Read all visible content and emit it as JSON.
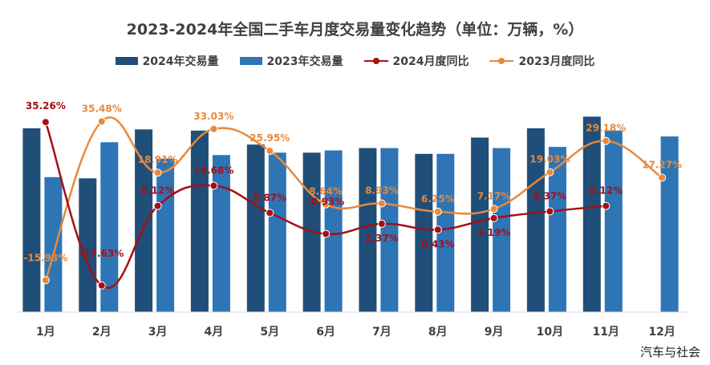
{
  "chart_data": {
    "type": "bar",
    "title": "2023-2024年全国二手车月度交易量变化趋势（单位：万辆，%）",
    "categories": [
      "1月",
      "2月",
      "3月",
      "4月",
      "5月",
      "6月",
      "7月",
      "8月",
      "9月",
      "10月",
      "11月",
      "12月"
    ],
    "series": [
      {
        "name": "2024年交易量",
        "kind": "bar",
        "color": "#1f4e79",
        "values": [
          158,
          115,
          157,
          156,
          144,
          137,
          141,
          136,
          150,
          158,
          168,
          null
        ]
      },
      {
        "name": "2023年交易量",
        "kind": "bar",
        "color": "#2e75b6",
        "values": [
          116,
          146,
          132,
          135,
          137,
          139,
          141,
          136,
          141,
          142,
          156,
          151
        ]
      },
      {
        "name": "2024月度同比",
        "kind": "line",
        "color": "#a50f15",
        "values": [
          35.26,
          -17.63,
          8.12,
          14.68,
          5.87,
          -0.93,
          2.37,
          0.43,
          4.19,
          6.37,
          8.12,
          null
        ],
        "labels": [
          "35.26%",
          "-17.63%",
          "8.12%",
          "14.68%",
          "5.87%",
          "-0.93%",
          "2.37%",
          "0.43%",
          "4.19%",
          "6.37%",
          "8.12%",
          ""
        ]
      },
      {
        "name": "2023月度同比",
        "kind": "line",
        "color": "#e8893c",
        "values": [
          -15.93,
          35.48,
          18.91,
          33.03,
          25.95,
          8.64,
          8.93,
          6.25,
          7.17,
          19.03,
          29.18,
          17.27
        ],
        "labels": [
          "-15.93%",
          "35.48%",
          "18.91%",
          "33.03%",
          "25.95%",
          "8.64%",
          "8.93%",
          "6.25%",
          "7.17%",
          "19.03%",
          "29.18%",
          "17.27%"
        ]
      }
    ],
    "legend_position": "top",
    "grid": false
  },
  "watermark": "汽车与社会"
}
